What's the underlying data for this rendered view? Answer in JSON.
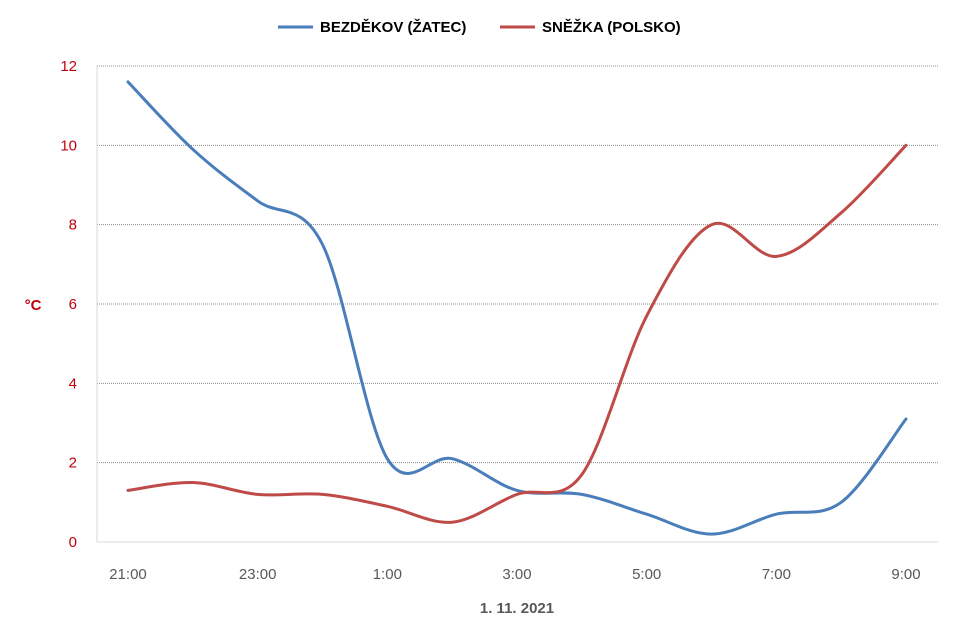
{
  "chart_data": {
    "type": "line",
    "title": "",
    "xlabel": "1. 11. 2021",
    "ylabel": "°C",
    "ylim": [
      0,
      12
    ],
    "yticks": [
      0,
      2,
      4,
      6,
      8,
      10,
      12
    ],
    "grid": true,
    "legend_position": "top-center",
    "x": [
      "21:00",
      "22:00",
      "23:00",
      "0:00",
      "1:00",
      "2:00",
      "3:00",
      "4:00",
      "5:00",
      "6:00",
      "7:00",
      "8:00",
      "9:00"
    ],
    "xtick_labels": [
      "21:00",
      "23:00",
      "1:00",
      "3:00",
      "5:00",
      "7:00",
      "9:00"
    ],
    "series": [
      {
        "name": "BEZDĚKOV (ŽATEC)",
        "color": "#4a7ebb",
        "values": [
          11.6,
          9.9,
          8.6,
          7.5,
          2.1,
          2.1,
          1.3,
          1.2,
          0.7,
          0.2,
          0.7,
          1.0,
          3.1
        ]
      },
      {
        "name": "SNĚŽKA (POLSKO)",
        "color": "#be4b48",
        "values": [
          1.3,
          1.5,
          1.2,
          1.2,
          0.9,
          0.5,
          1.2,
          1.7,
          5.7,
          8.0,
          7.2,
          8.3,
          10.0
        ]
      }
    ]
  }
}
